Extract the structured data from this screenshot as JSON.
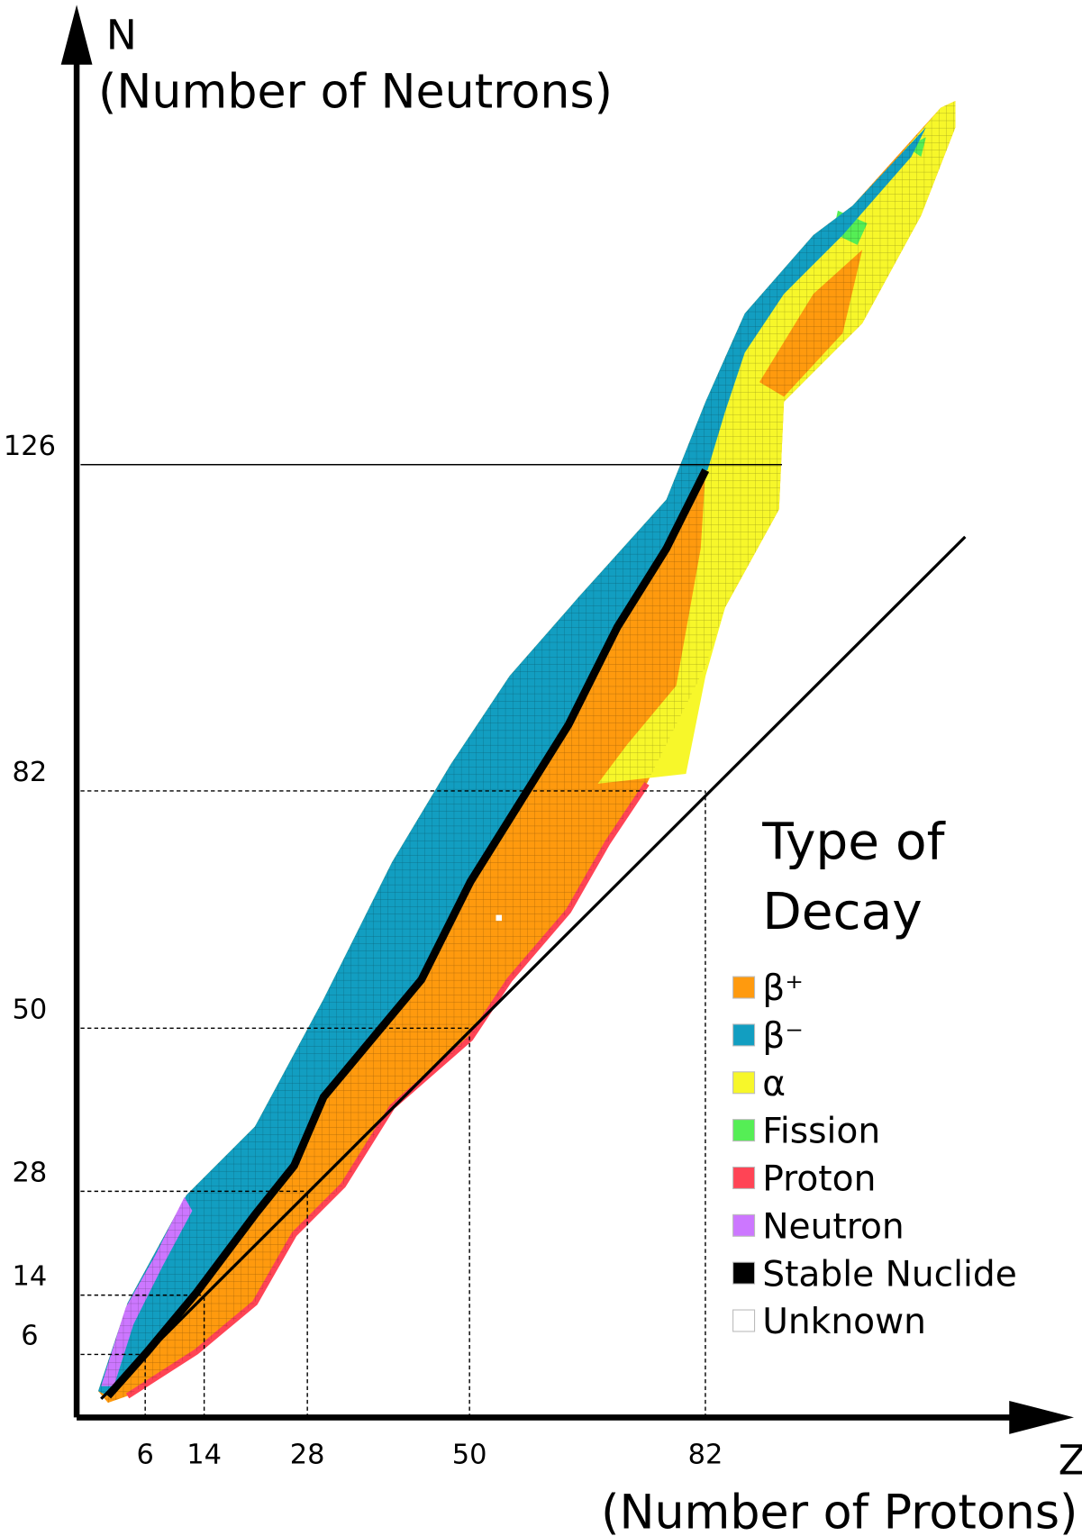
{
  "chart_data": {
    "type": "nuclide",
    "y_label": [
      "N",
      "(Number of Neutrons)"
    ],
    "x_label": [
      "Z",
      "(Number of Protons)"
    ],
    "xlim": [
      -3.3,
      132
    ],
    "ylim": [
      -2.5,
      188
    ],
    "xticks": [
      6,
      14,
      28,
      50,
      82
    ],
    "yticks": [
      6,
      14,
      28,
      50,
      82,
      126
    ],
    "legend_title": [
      "Type of",
      "Decay"
    ],
    "series": [
      {
        "name": "β⁺",
        "color": "#ff9a0e"
      },
      {
        "name": "β⁻",
        "color": "#129ec1"
      },
      {
        "name": "α",
        "color": "#f7f72a"
      },
      {
        "name": "Fission",
        "color": "#55ee55"
      },
      {
        "name": "Proton",
        "color": "#ff4455"
      },
      {
        "name": "Neutron",
        "color": "#cc77ff"
      },
      {
        "name": "Stable Nuclide",
        "color": "#000000"
      },
      {
        "name": "Unknown",
        "color": "#ffffff"
      }
    ]
  }
}
